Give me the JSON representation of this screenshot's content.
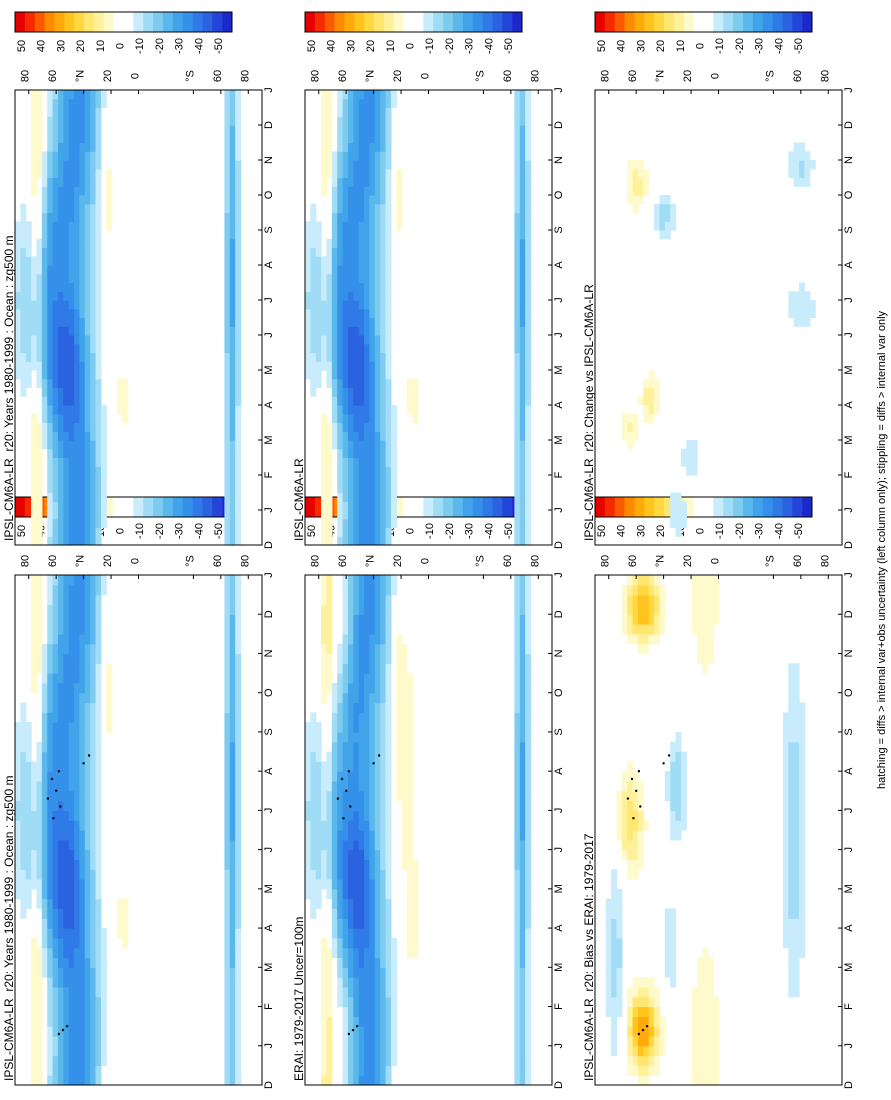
{
  "chart_data": {
    "type": "heatmap",
    "colors": {
      "bins": [
        "#e60000",
        "#f52a00",
        "#fa5a00",
        "#fd8a00",
        "#ffaa0a",
        "#ffc31e",
        "#ffd840",
        "#ffe670",
        "#fff19a",
        "#fffacc",
        "#ffffff",
        "#ffffff",
        "#c8ecfb",
        "#a0dcf6",
        "#7ecbf0",
        "#5bb8ec",
        "#41a4ea",
        "#3590ea",
        "#2f7ae6",
        "#2a62e0",
        "#2446d8",
        "#1d28cc"
      ]
    },
    "colorbar_ticks": [
      "50",
      "40",
      "30",
      "20",
      "10",
      "0",
      "-10",
      "-20",
      "-30",
      "-40",
      "-50"
    ],
    "month_labels": [
      "D",
      "J",
      "F",
      "M",
      "A",
      "M",
      "J",
      "J",
      "A",
      "S",
      "O",
      "N",
      "D",
      "J"
    ],
    "lat_labels": [
      "80",
      "60",
      "°N",
      "20",
      "0",
      "°S",
      "60",
      "80"
    ],
    "footnote": "hatching = diffs > internal var+obs uncertainty (left column only); stippling = diffs > internal var only",
    "panels": [
      {
        "id": "model-left",
        "title": "IPSL-CM6A-LR_r20: Years 1980-1999 : Ocean : zg500 m",
        "kind": "clim",
        "stipple": true
      },
      {
        "id": "model-right",
        "title": "IPSL-CM6A-LR_r20: Years 1980-1999 : Ocean : zg500 m",
        "kind": "clim",
        "stipple": false
      },
      {
        "id": "obs",
        "title": "ERAI: 1979-2017 Uncer=100m",
        "kind": "obs",
        "stipple": true
      },
      {
        "id": "ref",
        "title": "IPSL-CM6A-LR",
        "kind": "clim",
        "stipple": false
      },
      {
        "id": "bias",
        "title": "IPSL-CM6A-LR_r20: Bias vs ERAI: 1979-2017",
        "kind": "bias",
        "stipple": true
      },
      {
        "id": "change",
        "title": "IPSL-CM6A-LR_r20: Change vs IPSL-CM6A-LR",
        "kind": "change",
        "stipple": false
      }
    ]
  }
}
